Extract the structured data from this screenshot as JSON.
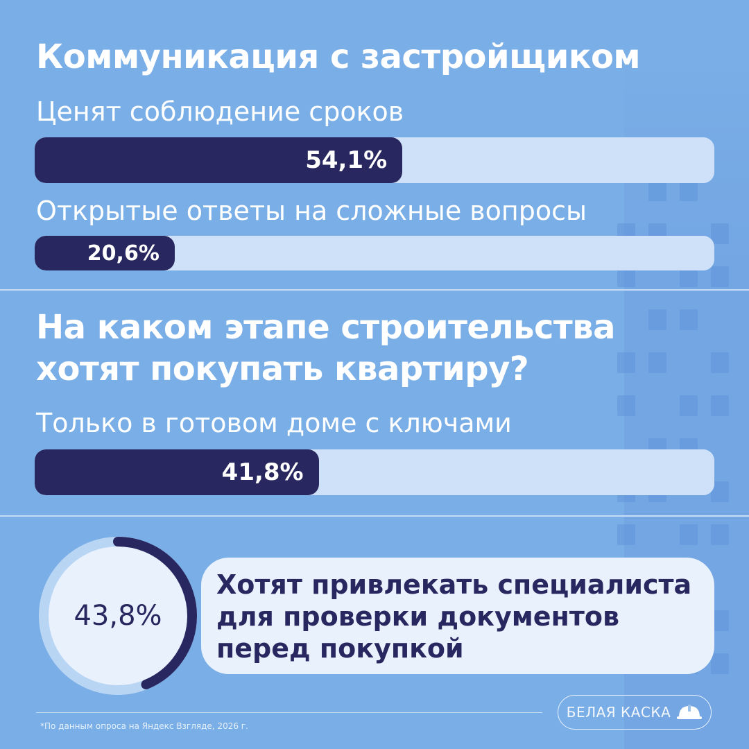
{
  "title": "Коммуникация с застройщиком",
  "section2_title_lines": [
    "На каком этапе строительства",
    "хотят покупать квартиру?"
  ],
  "chart_data": [
    {
      "type": "bar",
      "categories": [
        "Ценят соблюдение сроков",
        "Открытые ответы на сложные вопросы"
      ],
      "values": [
        54.1,
        20.6
      ],
      "value_labels": [
        "54,1%",
        "20,6%"
      ],
      "ylim": [
        0,
        100
      ]
    },
    {
      "type": "bar",
      "categories": [
        "Только в готовом доме с ключами"
      ],
      "values": [
        41.8
      ],
      "value_labels": [
        "41,8%"
      ],
      "ylim": [
        0,
        100
      ]
    },
    {
      "type": "pie",
      "values": [
        43.8
      ],
      "value_label": "43,8%",
      "caption_lines": [
        "Хотят привлекать специалиста",
        "для проверки документов",
        "перед покупкой"
      ]
    }
  ],
  "footnote": "*По данным опроса на Яндекс Взгляде, 2026 г.",
  "brand": "БЕЛАЯ КАСКА",
  "brand_icon": "hard-hat-icon",
  "colors": {
    "background": "#7aaee6",
    "bar_fill": "#28275f",
    "bar_track": "#cfe1f8",
    "ring_track": "#b9d5f4",
    "text_light": "#ffffff"
  }
}
